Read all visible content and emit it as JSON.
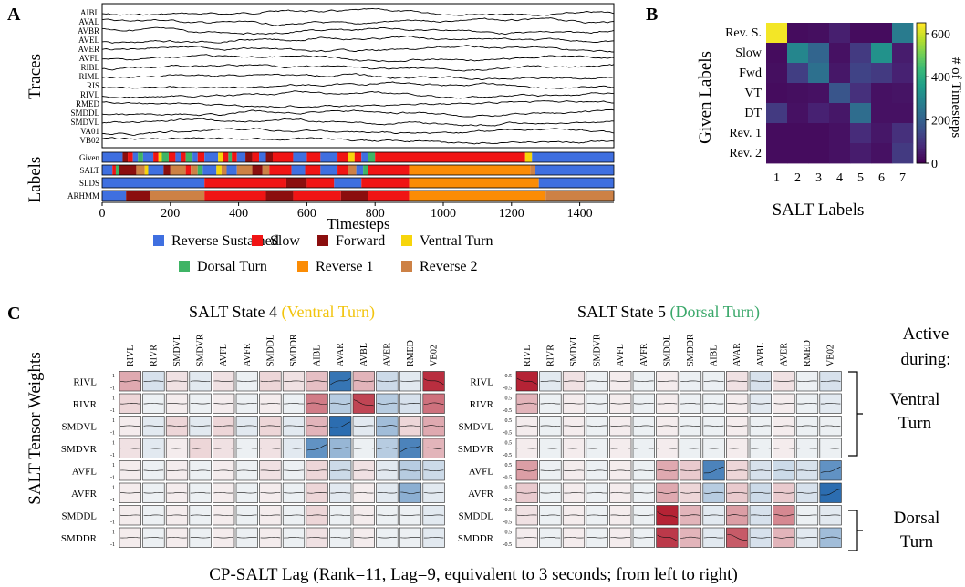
{
  "colors": {
    "reverse_sustained": "#3f6fe0",
    "slow": "#f01414",
    "forward": "#8b0e0e",
    "ventral_turn": "#f7d50b",
    "dorsal_turn": "#3fb465",
    "reverse_1": "#fb8c05",
    "reverse_2": "#cd8145",
    "ventral_text": "#f2c40d",
    "dorsal_text": "#3aa86a"
  },
  "panelA": {
    "letter": "A",
    "traces_title": "Traces",
    "labels_title": "Labels",
    "neurons": [
      "AIBL",
      "AVAL",
      "AVBR",
      "AVEL",
      "AVER",
      "AVFL",
      "RIBL",
      "RIML",
      "RIS",
      "RIVL",
      "RMED",
      "SMDDL",
      "SMDVL",
      "VA01",
      "VB02"
    ],
    "label_rows": [
      "Given",
      "SALT",
      "SLDS",
      "ARHMM"
    ],
    "xlabel": "Timesteps",
    "xticks": [
      0,
      200,
      400,
      600,
      800,
      1000,
      1200,
      1400
    ],
    "xmax": 1500
  },
  "legend": [
    {
      "label": "Reverse Sustained",
      "key": "reverse_sustained"
    },
    {
      "label": "Slow",
      "key": "slow"
    },
    {
      "label": "Forward",
      "key": "forward"
    },
    {
      "label": "Ventral Turn",
      "key": "ventral_turn"
    },
    {
      "label": "Dorsal Turn",
      "key": "dorsal_turn"
    },
    {
      "label": "Reverse 1",
      "key": "reverse_1"
    },
    {
      "label": "Reverse 2",
      "key": "reverse_2"
    }
  ],
  "panelB": {
    "letter": "B",
    "ylabel": "Given Labels",
    "xlabel": "SALT Labels",
    "row_labels": [
      "Rev. S.",
      "Slow",
      "Fwd",
      "VT",
      "DT",
      "Rev. 1",
      "Rev. 2"
    ],
    "col_labels": [
      "1",
      "2",
      "3",
      "4",
      "5",
      "6",
      "7"
    ],
    "colorbar_label": "# of Timesteps",
    "colorbar_ticks": [
      0,
      200,
      400,
      600
    ],
    "vmax": 650
  },
  "panelC": {
    "letter": "C",
    "ylabel": "SALT Tensor Weights",
    "state4_prefix": "SALT State 4 ",
    "state4_name": "(Ventral Turn)",
    "state5_prefix": "SALT State 5 ",
    "state5_name": "(Dorsal Turn)",
    "columns": [
      "RIVL",
      "RIVR",
      "SMDVL",
      "SMDVR",
      "AVFL",
      "AVFR",
      "SMDDL",
      "SMDDR",
      "AIBL",
      "AVAR",
      "AVBL",
      "AVER",
      "RMED",
      "VB02"
    ],
    "rows": [
      "RIVL",
      "RIVR",
      "SMDVL",
      "SMDVR",
      "AVFL",
      "AVFR",
      "SMDDL",
      "SMDDR"
    ],
    "state4_ticks": [
      "1",
      "-1"
    ],
    "state5_ticks": [
      "0.5",
      "-0.5"
    ],
    "active_title_1": "Active",
    "active_title_2": "during:",
    "ventral_1": "Ventral",
    "ventral_2": "Turn",
    "dorsal_1": "Dorsal",
    "dorsal_2": "Turn",
    "caption": "CP-SALT Lag (Rank=11, Lag=9, equivalent to 3 seconds; from left to right)"
  },
  "chart_data": [
    {
      "type": "line",
      "title": "Traces",
      "xlabel": "Timesteps",
      "x_range": [
        0,
        1500
      ],
      "series_names": [
        "AIBL",
        "AVAL",
        "AVBR",
        "AVEL",
        "AVER",
        "AVFL",
        "RIBL",
        "RIML",
        "RIS",
        "RIVL",
        "RMED",
        "SMDDL",
        "SMDVL",
        "VA01",
        "VB02"
      ]
    },
    {
      "type": "heatmap",
      "title": "Labels",
      "rows": [
        "Given",
        "SALT",
        "SLDS",
        "ARHMM"
      ],
      "x_range": [
        0,
        1500
      ],
      "segments": {
        "Given": [
          [
            0,
            60,
            "reverse_sustained"
          ],
          [
            60,
            75,
            "forward"
          ],
          [
            75,
            90,
            "slow"
          ],
          [
            90,
            105,
            "reverse_sustained"
          ],
          [
            105,
            120,
            "dorsal_turn"
          ],
          [
            120,
            150,
            "reverse_sustained"
          ],
          [
            150,
            165,
            "slow"
          ],
          [
            165,
            175,
            "ventral_turn"
          ],
          [
            175,
            195,
            "dorsal_turn"
          ],
          [
            195,
            215,
            "slow"
          ],
          [
            215,
            230,
            "reverse_sustained"
          ],
          [
            230,
            245,
            "slow"
          ],
          [
            245,
            265,
            "dorsal_turn"
          ],
          [
            265,
            280,
            "reverse_sustained"
          ],
          [
            280,
            300,
            "slow"
          ],
          [
            300,
            340,
            "reverse_sustained"
          ],
          [
            340,
            355,
            "ventral_turn"
          ],
          [
            355,
            370,
            "slow"
          ],
          [
            370,
            380,
            "dorsal_turn"
          ],
          [
            380,
            395,
            "slow"
          ],
          [
            395,
            420,
            "reverse_sustained"
          ],
          [
            420,
            440,
            "forward"
          ],
          [
            440,
            460,
            "slow"
          ],
          [
            460,
            480,
            "reverse_sustained"
          ],
          [
            480,
            500,
            "forward"
          ],
          [
            500,
            560,
            "slow"
          ],
          [
            560,
            600,
            "reverse_sustained"
          ],
          [
            600,
            640,
            "slow"
          ],
          [
            640,
            690,
            "reverse_sustained"
          ],
          [
            690,
            720,
            "slow"
          ],
          [
            720,
            740,
            "ventral_turn"
          ],
          [
            740,
            760,
            "slow"
          ],
          [
            760,
            780,
            "reverse_sustained"
          ],
          [
            780,
            800,
            "dorsal_turn"
          ],
          [
            800,
            1240,
            "slow"
          ],
          [
            1240,
            1260,
            "ventral_turn"
          ],
          [
            1260,
            1500,
            "reverse_sustained"
          ]
        ],
        "SALT": [
          [
            0,
            30,
            "reverse_sustained"
          ],
          [
            30,
            40,
            "slow"
          ],
          [
            40,
            50,
            "dorsal_turn"
          ],
          [
            50,
            100,
            "forward"
          ],
          [
            100,
            125,
            "reverse_2"
          ],
          [
            125,
            135,
            "ventral_turn"
          ],
          [
            135,
            180,
            "reverse_sustained"
          ],
          [
            180,
            200,
            "forward"
          ],
          [
            200,
            245,
            "reverse_2"
          ],
          [
            245,
            260,
            "slow"
          ],
          [
            260,
            280,
            "reverse_2"
          ],
          [
            280,
            295,
            "dorsal_turn"
          ],
          [
            295,
            335,
            "reverse_sustained"
          ],
          [
            335,
            350,
            "ventral_turn"
          ],
          [
            350,
            365,
            "reverse_2"
          ],
          [
            365,
            395,
            "reverse_sustained"
          ],
          [
            395,
            440,
            "reverse_2"
          ],
          [
            440,
            470,
            "forward"
          ],
          [
            470,
            490,
            "reverse_2"
          ],
          [
            490,
            555,
            "slow"
          ],
          [
            555,
            595,
            "reverse_sustained"
          ],
          [
            595,
            640,
            "slow"
          ],
          [
            640,
            690,
            "reverse_sustained"
          ],
          [
            690,
            720,
            "slow"
          ],
          [
            720,
            745,
            "reverse_2"
          ],
          [
            745,
            765,
            "reverse_sustained"
          ],
          [
            765,
            780,
            "dorsal_turn"
          ],
          [
            780,
            900,
            "slow"
          ],
          [
            900,
            1255,
            "reverse_1"
          ],
          [
            1255,
            1270,
            "reverse_2"
          ],
          [
            1270,
            1500,
            "reverse_sustained"
          ]
        ],
        "SLDS": [
          [
            0,
            300,
            "reverse_sustained"
          ],
          [
            300,
            540,
            "slow"
          ],
          [
            540,
            600,
            "forward"
          ],
          [
            600,
            680,
            "slow"
          ],
          [
            680,
            760,
            "reverse_sustained"
          ],
          [
            760,
            900,
            "slow"
          ],
          [
            900,
            1280,
            "reverse_1"
          ],
          [
            1280,
            1500,
            "reverse_sustained"
          ]
        ],
        "ARHMM": [
          [
            0,
            70,
            "reverse_sustained"
          ],
          [
            70,
            140,
            "forward"
          ],
          [
            140,
            300,
            "reverse_2"
          ],
          [
            300,
            480,
            "slow"
          ],
          [
            480,
            560,
            "forward"
          ],
          [
            560,
            700,
            "slow"
          ],
          [
            700,
            780,
            "forward"
          ],
          [
            780,
            900,
            "slow"
          ],
          [
            900,
            1300,
            "reverse_1"
          ],
          [
            1300,
            1500,
            "reverse_2"
          ]
        ]
      }
    },
    {
      "type": "heatmap",
      "title": "Given Labels vs SALT Labels",
      "xlabel": "SALT Labels",
      "ylabel": "Given Labels",
      "colorbar_label": "# of Timesteps",
      "rows": [
        "Rev. S.",
        "Slow",
        "Fwd",
        "VT",
        "DT",
        "Rev. 1",
        "Rev. 2"
      ],
      "cols": [
        "1",
        "2",
        "3",
        "4",
        "5",
        "6",
        "7"
      ],
      "values": [
        [
          640,
          20,
          25,
          55,
          20,
          20,
          270
        ],
        [
          20,
          300,
          210,
          30,
          110,
          330,
          50
        ],
        [
          25,
          120,
          240,
          40,
          130,
          110,
          60
        ],
        [
          20,
          25,
          30,
          170,
          90,
          30,
          35
        ],
        [
          110,
          30,
          60,
          40,
          230,
          30,
          30
        ],
        [
          20,
          20,
          20,
          30,
          80,
          40,
          90
        ],
        [
          20,
          20,
          20,
          30,
          50,
          30,
          110
        ]
      ],
      "vmin": 0,
      "vmax": 650
    },
    {
      "type": "heatmap",
      "title": "SALT State 4 (Ventral Turn)",
      "rows": [
        "RIVL",
        "RIVR",
        "SMDVL",
        "SMDVR",
        "AVFL",
        "AVFR",
        "SMDDL",
        "SMDDR"
      ],
      "cols": [
        "RIVL",
        "RIVR",
        "SMDVL",
        "SMDVR",
        "AVFL",
        "AVFR",
        "SMDDL",
        "SMDDR",
        "AIBL",
        "AVAR",
        "AVBL",
        "AVER",
        "RMED",
        "VB02"
      ],
      "values": [
        [
          0.35,
          -0.15,
          0.1,
          -0.1,
          0.1,
          -0.05,
          0.15,
          0.1,
          0.25,
          -0.9,
          0.3,
          -0.2,
          -0.1,
          0.9
        ],
        [
          0.15,
          -0.05,
          0.05,
          -0.05,
          0.05,
          -0.05,
          0.05,
          -0.05,
          0.55,
          -0.3,
          0.8,
          -0.3,
          -0.15,
          0.6
        ],
        [
          0.05,
          -0.1,
          0.15,
          -0.1,
          0.15,
          -0.1,
          0.15,
          -0.1,
          0.3,
          -0.95,
          -0.1,
          -0.4,
          0.15,
          0.35
        ],
        [
          0.1,
          -0.1,
          0.05,
          0.15,
          0.1,
          -0.05,
          0.1,
          -0.1,
          -0.7,
          -0.45,
          -0.05,
          -0.3,
          -0.8,
          0.3
        ],
        [
          0.05,
          -0.05,
          0.05,
          -0.05,
          0.05,
          -0.05,
          0.1,
          -0.05,
          0.15,
          -0.2,
          0.1,
          -0.1,
          -0.3,
          -0.2
        ],
        [
          0.05,
          -0.05,
          0.05,
          -0.05,
          0.05,
          -0.05,
          0.05,
          -0.05,
          0.15,
          -0.1,
          0.05,
          -0.1,
          -0.5,
          -0.1
        ],
        [
          0.05,
          -0.05,
          0.05,
          -0.05,
          0.05,
          -0.05,
          0.05,
          -0.05,
          0.15,
          -0.05,
          0.05,
          -0.05,
          -0.05,
          -0.1
        ],
        [
          0.05,
          -0.05,
          0.05,
          -0.05,
          0.05,
          -0.05,
          0.05,
          -0.05,
          0.1,
          -0.05,
          0.05,
          -0.05,
          -0.05,
          -0.1
        ]
      ],
      "vmin": -1,
      "vmax": 1
    },
    {
      "type": "heatmap",
      "title": "SALT State 5 (Dorsal Turn)",
      "rows": [
        "RIVL",
        "RIVR",
        "SMDVL",
        "SMDVR",
        "AVFL",
        "AVFR",
        "SMDDL",
        "SMDDR"
      ],
      "cols": [
        "RIVL",
        "RIVR",
        "SMDVL",
        "SMDVR",
        "AVFL",
        "AVFR",
        "SMDDL",
        "SMDDR",
        "AIBL",
        "AVAR",
        "AVBL",
        "AVER",
        "RMED",
        "VB02"
      ],
      "values": [
        [
          0.95,
          -0.1,
          0.1,
          -0.05,
          0.05,
          -0.05,
          0.05,
          -0.05,
          -0.05,
          0.1,
          -0.15,
          0.1,
          -0.05,
          -0.15
        ],
        [
          0.3,
          -0.05,
          0.05,
          -0.05,
          0.05,
          -0.05,
          0.05,
          -0.05,
          -0.05,
          0.05,
          -0.1,
          0.05,
          -0.05,
          -0.1
        ],
        [
          0.05,
          -0.05,
          0.05,
          -0.05,
          0.05,
          -0.05,
          0.05,
          -0.05,
          -0.05,
          0.05,
          -0.05,
          0.05,
          -0.05,
          -0.05
        ],
        [
          0.05,
          -0.05,
          0.05,
          -0.05,
          0.05,
          -0.05,
          0.05,
          -0.05,
          -0.05,
          0.05,
          -0.05,
          0.05,
          -0.05,
          -0.05
        ],
        [
          0.4,
          -0.05,
          0.05,
          -0.05,
          0.05,
          -0.05,
          0.35,
          0.2,
          -0.8,
          0.15,
          -0.15,
          -0.2,
          -0.15,
          -0.7
        ],
        [
          0.2,
          -0.05,
          0.05,
          -0.05,
          0.05,
          -0.05,
          0.35,
          0.15,
          -0.3,
          0.2,
          -0.2,
          0.2,
          -0.15,
          -0.95
        ],
        [
          0.1,
          -0.05,
          0.05,
          -0.05,
          0.05,
          -0.05,
          0.95,
          0.3,
          -0.1,
          0.4,
          -0.15,
          0.5,
          -0.05,
          -0.1
        ],
        [
          0.05,
          -0.05,
          0.05,
          -0.05,
          0.05,
          -0.05,
          0.85,
          0.3,
          -0.1,
          0.7,
          -0.15,
          0.3,
          -0.1,
          -0.4
        ]
      ],
      "vmin": -1,
      "vmax": 1
    }
  ]
}
